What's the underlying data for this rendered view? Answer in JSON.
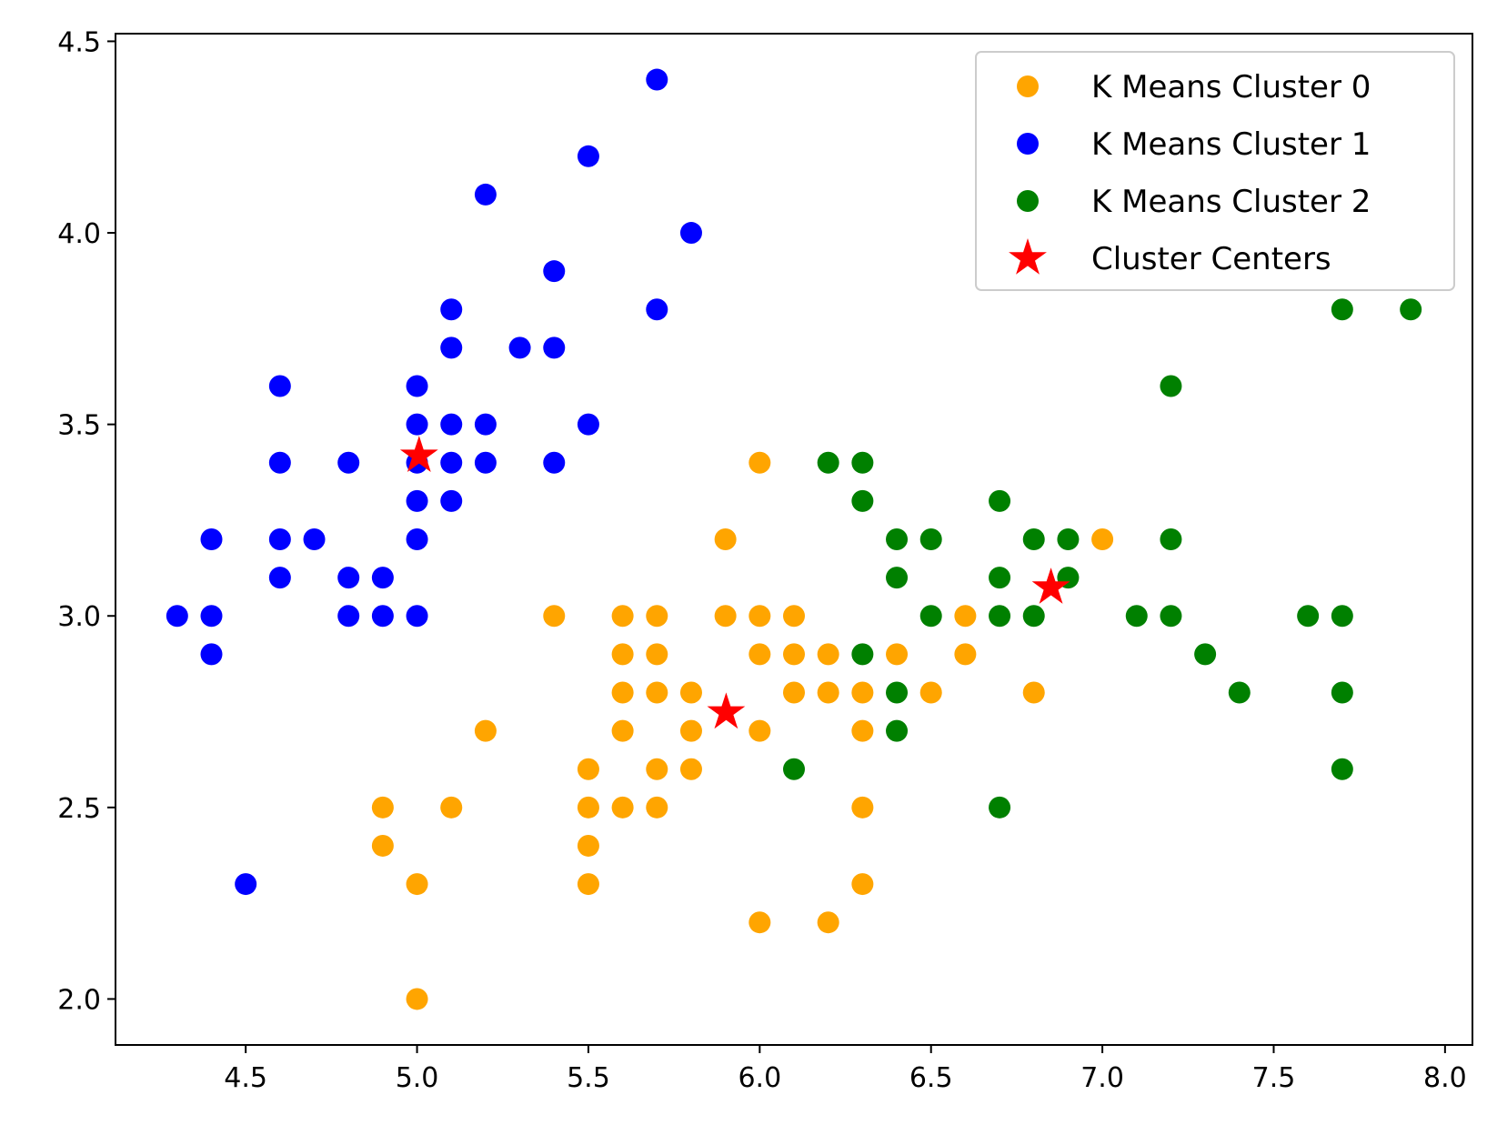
{
  "chart_data": {
    "type": "scatter",
    "title": "",
    "xlabel": "",
    "ylabel": "",
    "xlim": [
      4.12,
      8.08
    ],
    "ylim": [
      1.88,
      4.52
    ],
    "x_ticks": [
      4.5,
      5.0,
      5.5,
      6.0,
      6.5,
      7.0,
      7.5,
      8.0
    ],
    "y_ticks": [
      2.0,
      2.5,
      3.0,
      3.5,
      4.0,
      4.5
    ],
    "x_tick_labels": [
      "4.5",
      "5.0",
      "5.5",
      "6.0",
      "6.5",
      "7.0",
      "7.5",
      "8.0"
    ],
    "y_tick_labels": [
      "2.0",
      "2.5",
      "3.0",
      "3.5",
      "4.0",
      "4.5"
    ],
    "grid": false,
    "legend_position": "top-right",
    "series": [
      {
        "name": "K Means Cluster 0",
        "color": "#ffa500",
        "marker": "circle",
        "points": [
          [
            5.0,
            2.0
          ],
          [
            6.0,
            2.2
          ],
          [
            6.2,
            2.2
          ],
          [
            5.0,
            2.3
          ],
          [
            5.5,
            2.3
          ],
          [
            6.3,
            2.3
          ],
          [
            4.9,
            2.4
          ],
          [
            5.5,
            2.4
          ],
          [
            4.9,
            2.5
          ],
          [
            5.1,
            2.5
          ],
          [
            5.5,
            2.5
          ],
          [
            5.6,
            2.5
          ],
          [
            5.7,
            2.5
          ],
          [
            6.3,
            2.5
          ],
          [
            5.5,
            2.6
          ],
          [
            5.7,
            2.6
          ],
          [
            5.8,
            2.6
          ],
          [
            5.2,
            2.7
          ],
          [
            5.6,
            2.7
          ],
          [
            5.8,
            2.7
          ],
          [
            6.0,
            2.7
          ],
          [
            6.3,
            2.7
          ],
          [
            5.6,
            2.8
          ],
          [
            5.7,
            2.8
          ],
          [
            5.8,
            2.8
          ],
          [
            6.1,
            2.8
          ],
          [
            6.2,
            2.8
          ],
          [
            6.3,
            2.8
          ],
          [
            6.5,
            2.8
          ],
          [
            6.8,
            2.8
          ],
          [
            5.6,
            2.9
          ],
          [
            5.7,
            2.9
          ],
          [
            6.0,
            2.9
          ],
          [
            6.1,
            2.9
          ],
          [
            6.2,
            2.9
          ],
          [
            6.4,
            2.9
          ],
          [
            6.6,
            2.9
          ],
          [
            5.4,
            3.0
          ],
          [
            5.6,
            3.0
          ],
          [
            5.7,
            3.0
          ],
          [
            5.9,
            3.0
          ],
          [
            6.0,
            3.0
          ],
          [
            6.1,
            3.0
          ],
          [
            6.6,
            3.0
          ],
          [
            5.9,
            3.2
          ],
          [
            7.0,
            3.2
          ],
          [
            6.0,
            3.4
          ]
        ]
      },
      {
        "name": "K Means Cluster 1",
        "color": "#0000ff",
        "marker": "circle",
        "points": [
          [
            4.5,
            2.3
          ],
          [
            4.4,
            2.9
          ],
          [
            4.3,
            3.0
          ],
          [
            4.4,
            3.0
          ],
          [
            4.8,
            3.0
          ],
          [
            4.9,
            3.0
          ],
          [
            5.0,
            3.0
          ],
          [
            4.6,
            3.1
          ],
          [
            4.8,
            3.1
          ],
          [
            4.9,
            3.1
          ],
          [
            4.4,
            3.2
          ],
          [
            4.6,
            3.2
          ],
          [
            4.7,
            3.2
          ],
          [
            5.0,
            3.2
          ],
          [
            5.0,
            3.3
          ],
          [
            5.1,
            3.3
          ],
          [
            4.6,
            3.4
          ],
          [
            4.8,
            3.4
          ],
          [
            5.0,
            3.4
          ],
          [
            5.1,
            3.4
          ],
          [
            5.2,
            3.4
          ],
          [
            5.4,
            3.4
          ],
          [
            5.0,
            3.5
          ],
          [
            5.1,
            3.5
          ],
          [
            5.2,
            3.5
          ],
          [
            5.5,
            3.5
          ],
          [
            4.6,
            3.6
          ],
          [
            5.0,
            3.6
          ],
          [
            5.1,
            3.7
          ],
          [
            5.3,
            3.7
          ],
          [
            5.4,
            3.7
          ],
          [
            5.1,
            3.8
          ],
          [
            5.7,
            3.8
          ],
          [
            5.4,
            3.9
          ],
          [
            5.8,
            4.0
          ],
          [
            5.2,
            4.1
          ],
          [
            5.5,
            4.2
          ],
          [
            5.7,
            4.4
          ]
        ]
      },
      {
        "name": "K Means Cluster 2",
        "color": "#008000",
        "marker": "circle",
        "points": [
          [
            6.7,
            2.5
          ],
          [
            6.1,
            2.6
          ],
          [
            7.7,
            2.6
          ],
          [
            6.4,
            2.7
          ],
          [
            6.4,
            2.8
          ],
          [
            7.4,
            2.8
          ],
          [
            7.7,
            2.8
          ],
          [
            6.3,
            2.9
          ],
          [
            7.3,
            2.9
          ],
          [
            6.5,
            3.0
          ],
          [
            6.7,
            3.0
          ],
          [
            6.8,
            3.0
          ],
          [
            7.1,
            3.0
          ],
          [
            7.2,
            3.0
          ],
          [
            7.6,
            3.0
          ],
          [
            7.7,
            3.0
          ],
          [
            6.4,
            3.1
          ],
          [
            6.7,
            3.1
          ],
          [
            6.9,
            3.1
          ],
          [
            6.4,
            3.2
          ],
          [
            6.5,
            3.2
          ],
          [
            6.8,
            3.2
          ],
          [
            6.9,
            3.2
          ],
          [
            7.2,
            3.2
          ],
          [
            6.3,
            3.3
          ],
          [
            6.7,
            3.3
          ],
          [
            6.2,
            3.4
          ],
          [
            6.3,
            3.4
          ],
          [
            7.2,
            3.6
          ],
          [
            7.7,
            3.8
          ],
          [
            7.9,
            3.8
          ]
        ]
      },
      {
        "name": "Cluster Centers",
        "color": "#ff0000",
        "marker": "star",
        "points": [
          [
            5.006,
            3.418
          ],
          [
            5.902,
            2.748
          ],
          [
            6.85,
            3.074
          ]
        ]
      }
    ]
  }
}
